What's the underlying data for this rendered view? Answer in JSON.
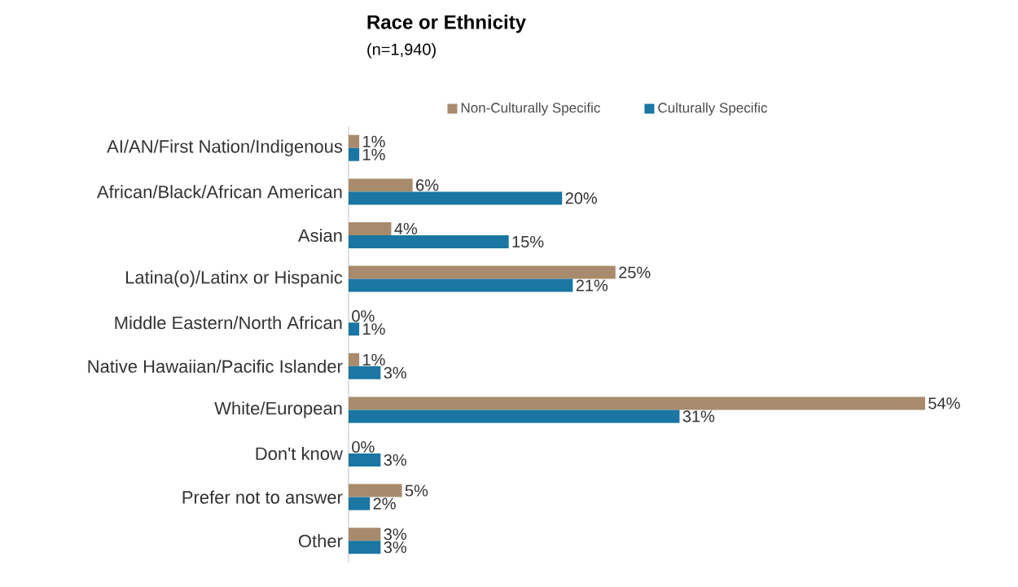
{
  "chart_data": {
    "type": "bar",
    "orientation": "horizontal",
    "title": "Race or Ethnicity",
    "subtitle": "(n=1,940)",
    "categories": [
      "AI/AN/First Nation/Indigenous",
      "African/Black/African American",
      "Asian",
      "Latina(o)/Latinx or Hispanic",
      "Middle Eastern/North African",
      "Native Hawaiian/Pacific Islander",
      "White/European",
      "Don't know",
      "Prefer not to answer",
      "Other"
    ],
    "series": [
      {
        "name": "Non-Culturally Specific",
        "color": "#a88b6c",
        "values": [
          1,
          6,
          4,
          25,
          0,
          1,
          54,
          0,
          5,
          3
        ],
        "value_labels": [
          "1%",
          "6%",
          "4%",
          "25%",
          "0%",
          "1%",
          "54%",
          "0%",
          "5%",
          "3%"
        ]
      },
      {
        "name": "Culturally Specific",
        "color": "#1a76a3",
        "values": [
          1,
          20,
          15,
          21,
          1,
          3,
          31,
          3,
          2,
          3
        ],
        "value_labels": [
          "1%",
          "20%",
          "15%",
          "21%",
          "1%",
          "3%",
          "31%",
          "3%",
          "2%",
          "3%"
        ]
      }
    ],
    "legend": "top"
  }
}
